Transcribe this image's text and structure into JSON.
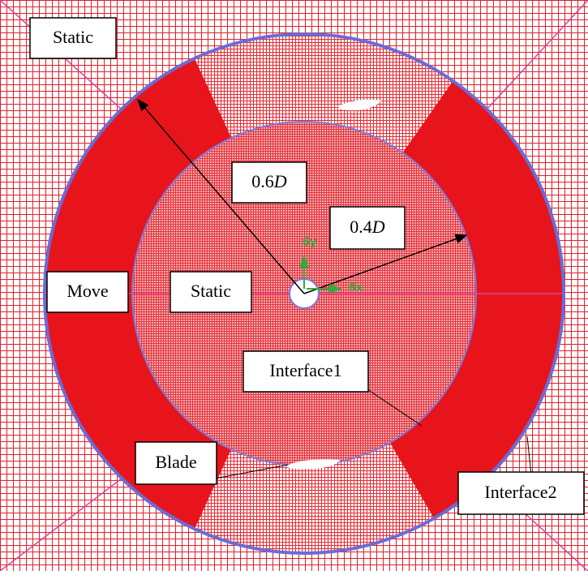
{
  "labels": {
    "static_outer": "Static",
    "radius_outer": {
      "number": "0.6",
      "symbol": "D"
    },
    "radius_inner": {
      "number": "0.4",
      "symbol": "D"
    },
    "move": "Move",
    "static_inner": "Static",
    "interface1": "Interface1",
    "blade": "Blade",
    "interface2": "Interface2"
  },
  "axes": {
    "y": "6y",
    "x": "6x"
  }
}
